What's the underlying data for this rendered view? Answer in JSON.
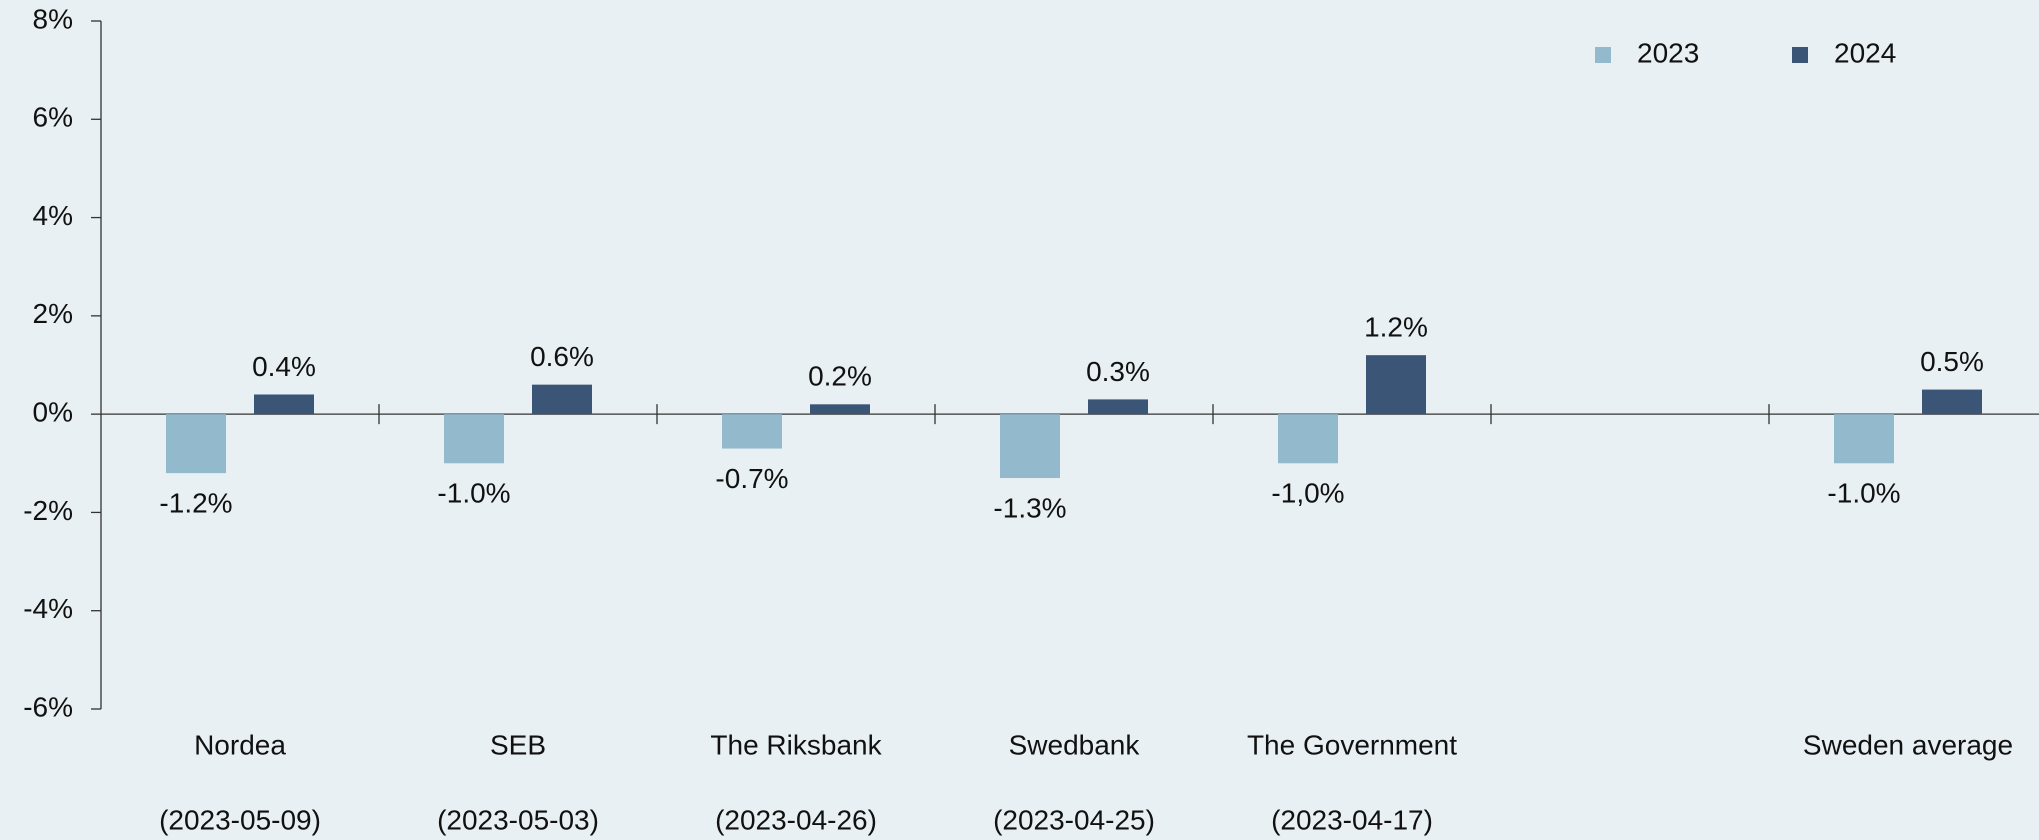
{
  "chart_data": {
    "type": "bar",
    "categories": [
      "Nordea",
      "SEB",
      "The Riksbank",
      "Swedbank",
      "The Government",
      null,
      "Sweden average"
    ],
    "category_dates": [
      "(2023-05-09)",
      "(2023-05-03)",
      "(2023-04-26)",
      "(2023-04-25)",
      "(2023-04-17)",
      null,
      null
    ],
    "series": [
      {
        "name": "2023",
        "color": "#93b9cc",
        "values": [
          -1.2,
          -1.0,
          -0.7,
          -1.3,
          -1.0,
          null,
          -1.0
        ],
        "value_labels": [
          "-1.2%",
          "-1.0%",
          "-0.7%",
          "-1.3%",
          "-1,0%",
          null,
          "-1.0%"
        ]
      },
      {
        "name": "2024",
        "color": "#3b5576",
        "values": [
          0.4,
          0.6,
          0.2,
          0.3,
          1.2,
          null,
          0.5
        ],
        "value_labels": [
          "0.4%",
          "0.6%",
          "0.2%",
          "0.3%",
          "1.2%",
          null,
          "0.5%"
        ]
      }
    ],
    "ylim": [
      -6,
      8
    ],
    "yticks": [
      {
        "value": -6,
        "label": "-6%"
      },
      {
        "value": -4,
        "label": "-4%"
      },
      {
        "value": -2,
        "label": "-2%"
      },
      {
        "value": 0,
        "label": "0%"
      },
      {
        "value": 2,
        "label": "2%"
      },
      {
        "value": 4,
        "label": "4%"
      },
      {
        "value": 6,
        "label": "6%"
      },
      {
        "value": 8,
        "label": "8%"
      }
    ],
    "legend": "top-right"
  }
}
